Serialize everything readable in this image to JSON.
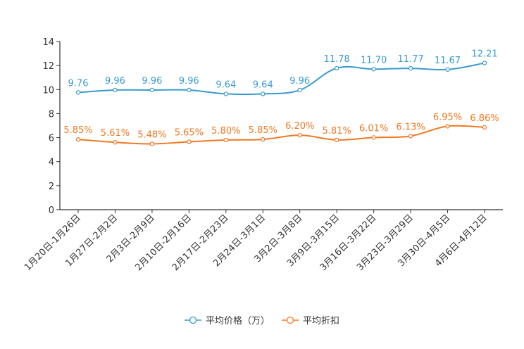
{
  "chart_data": {
    "type": "line",
    "title": "",
    "xlabel": "",
    "ylabel": "",
    "ylim": [
      0,
      14
    ],
    "yticks": [
      0,
      2,
      4,
      6,
      8,
      10,
      12,
      14
    ],
    "grid": false,
    "legend_position": "bottom",
    "categories": [
      "1月20日-1月26日",
      "1月27日-2月2日",
      "2月3日-2月9日",
      "2月10日-2月16日",
      "2月17日-2月23日",
      "2月24日-3月1日",
      "3月2日-3月8日",
      "3月9日-3月15日",
      "3月16日-3月22日",
      "3月23日-3月29日",
      "3月30日-4月5日",
      "4月6日-4月12日"
    ],
    "series": [
      {
        "name": "平均价格（万）",
        "color": "#3a9bd0",
        "values": [
          9.76,
          9.96,
          9.96,
          9.96,
          9.64,
          9.64,
          9.96,
          11.78,
          11.7,
          11.77,
          11.67,
          12.21
        ],
        "labels": [
          "9.76",
          "9.96",
          "9.96",
          "9.96",
          "9.64",
          "9.64",
          "9.96",
          "11.78",
          "11.70",
          "11.77",
          "11.67",
          "12.21"
        ]
      },
      {
        "name": "平均折扣",
        "color": "#f07820",
        "values": [
          5.85,
          5.61,
          5.48,
          5.65,
          5.8,
          5.85,
          6.2,
          5.81,
          6.01,
          6.13,
          6.95,
          6.86
        ],
        "labels": [
          "5.85%",
          "5.61%",
          "5.48%",
          "5.65%",
          "5.80%",
          "5.85%",
          "6.20%",
          "5.81%",
          "6.01%",
          "6.13%",
          "6.95%",
          "6.86%"
        ]
      }
    ]
  }
}
